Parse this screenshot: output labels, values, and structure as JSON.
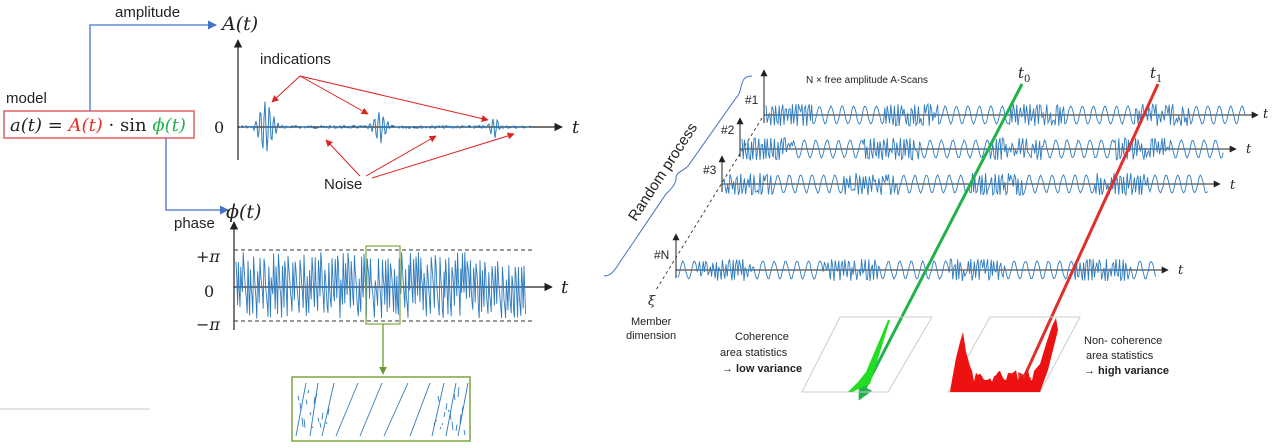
{
  "left": {
    "model_label": "model",
    "formula": {
      "lhs": "a(t) = ",
      "amp": "A(t)",
      "mid": " · sin ",
      "phase": "ϕ(t)"
    },
    "amplitude_label": "amplitude",
    "phase_label": "phase",
    "amp_axis_title": "A(t)",
    "amp_zero": "0",
    "amp_t": "t",
    "indications_label": "indications",
    "noise_label": "Noise",
    "phase_axis_title": "ϕ(t)",
    "phase_plus": "+π",
    "phase_zero": "0",
    "phase_minus": "−π",
    "phase_t": "t"
  },
  "right": {
    "scans_title": "N × free amplitude A-Scans",
    "random_process": "Random process",
    "xi": "ξ",
    "member_dimension_1": "Member",
    "member_dimension_2": "dimension",
    "t0": "t",
    "t0_sub": "0",
    "t1": "t",
    "t1_sub": "1",
    "scans": [
      {
        "label": "#1",
        "t": "t"
      },
      {
        "label": "#2",
        "t": "t"
      },
      {
        "label": "#3",
        "t": "t"
      },
      {
        "label": "#N",
        "t": "t"
      }
    ],
    "coherence_1": "Coherence",
    "coherence_2": "area statistics",
    "coherence_3": "→ low variance",
    "noncoherence_1": "Non- coherence",
    "noncoherence_2": "area statistics",
    "noncoherence_3": "→ high variance"
  },
  "colors": {
    "signal": "#2e7bbf",
    "red": "#e0302a",
    "green": "#22b24c",
    "connector": "#4472c4",
    "zoom_box": "#7aa640",
    "box_red": "#e06060"
  }
}
